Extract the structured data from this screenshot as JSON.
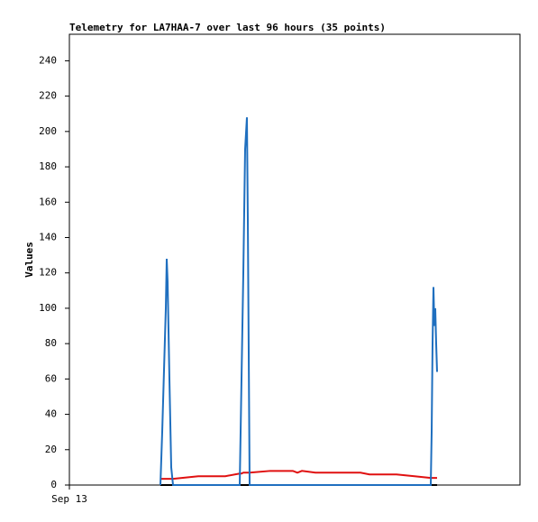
{
  "chart_data": {
    "type": "line",
    "title": "Telemetry for LA7HAA-7 over last 96 hours (35 points)",
    "y_label": "Values",
    "x": [
      20.2,
      20.6,
      21,
      21.4,
      21.6,
      21.8,
      22.2,
      22.6,
      23,
      28.6,
      34.6,
      37.8,
      38.2,
      38.6,
      39,
      39.4,
      39.6,
      40,
      44.6,
      49.6,
      50.6,
      51.6,
      54.6,
      64.6,
      66.6,
      72.6,
      76.6,
      80.2,
      80.4,
      80.6,
      80.8,
      81,
      81.2,
      81.4,
      81.6
    ],
    "series": [
      {
        "color": "#1f6fbf",
        "values": [
          0,
          30,
          65,
          100,
          128,
          115,
          60,
          10,
          0,
          0,
          0,
          0,
          60,
          120,
          190,
          208,
          150,
          0,
          0,
          0,
          0,
          0,
          0,
          0,
          0,
          0,
          0,
          0,
          30,
          80,
          112,
          90,
          100,
          80,
          64
        ]
      },
      {
        "color": "#e01010",
        "values": [
          3.5,
          3.5,
          3.5,
          3.5,
          3.5,
          3.5,
          3.5,
          3.5,
          3.5,
          5,
          5,
          6.5,
          6.5,
          7,
          7,
          7,
          7,
          7,
          8,
          8,
          7,
          8,
          7,
          7,
          6,
          6,
          5,
          4,
          4,
          4,
          4,
          4,
          4,
          4,
          4
        ]
      },
      {
        "color": "#000000",
        "values": [
          0,
          0,
          0,
          0,
          0,
          0,
          0,
          0,
          0,
          0,
          0,
          0,
          0,
          0,
          0,
          0,
          0,
          0,
          0,
          0,
          0,
          0,
          0,
          0,
          0,
          0,
          0,
          0,
          0,
          0,
          0,
          0,
          0,
          0,
          0
        ]
      }
    ],
    "xlim": [
      0,
      100
    ],
    "xticks": [
      {
        "value": 0,
        "label": "Sep 13"
      }
    ],
    "ylim": [
      0,
      255
    ],
    "yticks": [
      0,
      20,
      40,
      60,
      80,
      100,
      120,
      140,
      160,
      180,
      200,
      220,
      240
    ]
  }
}
